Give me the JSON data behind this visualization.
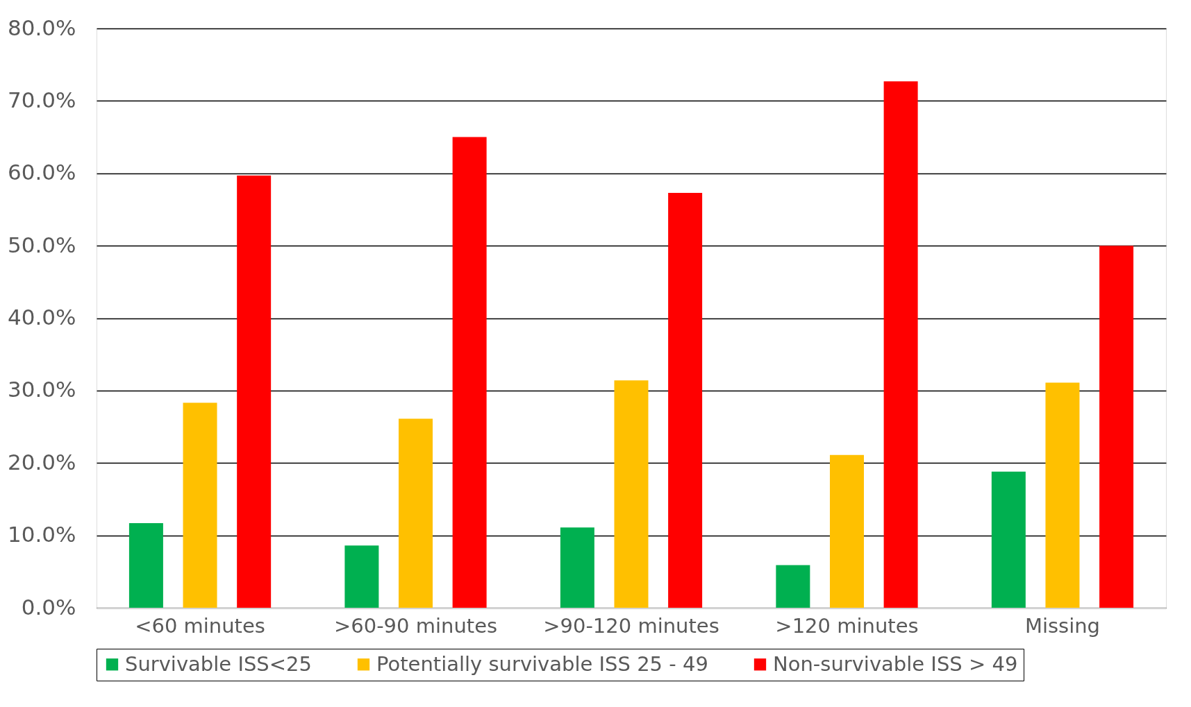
{
  "chart_data": {
    "type": "bar",
    "categories": [
      "<60 minutes",
      ">60-90 minutes",
      ">90-120 minutes",
      ">120 minutes",
      "Missing"
    ],
    "series": [
      {
        "name": "Survivable ISS<25",
        "color": "#00b050",
        "values": [
          11.7,
          8.6,
          11.1,
          5.9,
          18.8
        ]
      },
      {
        "name": "Potentially survivable ISS 25 - 49",
        "color": "#ffc000",
        "values": [
          28.3,
          26.1,
          31.4,
          21.1,
          31.1
        ]
      },
      {
        "name": "Non-survivable ISS > 49",
        "color": "#ff0000",
        "values": [
          59.7,
          65.0,
          57.3,
          72.7,
          50.0
        ]
      }
    ],
    "ylim": [
      0,
      80
    ],
    "yticks": [
      {
        "value": 0,
        "label": "0.0%"
      },
      {
        "value": 10,
        "label": "10.0%"
      },
      {
        "value": 20,
        "label": "20.0%"
      },
      {
        "value": 30,
        "label": "30.0%"
      },
      {
        "value": 40,
        "label": "40.0%"
      },
      {
        "value": 50,
        "label": "50.0%"
      },
      {
        "value": 60,
        "label": "60.0%"
      },
      {
        "value": 70,
        "label": "70.0%"
      },
      {
        "value": 80,
        "label": "80.0%"
      }
    ],
    "grid": "y",
    "legend": "bottom"
  }
}
